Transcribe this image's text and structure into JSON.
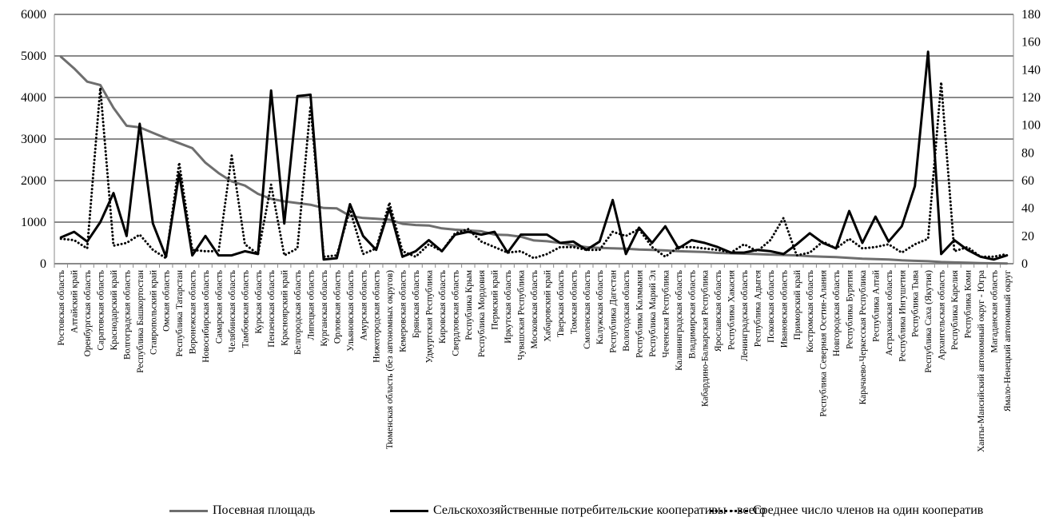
{
  "chart_data": {
    "type": "line",
    "grid": true,
    "legend_position": "bottom",
    "y_left": {
      "min": 0,
      "max": 6000,
      "ticks": [
        "0",
        "1000",
        "2000",
        "3000",
        "4000",
        "5000",
        "6000"
      ]
    },
    "y_right": {
      "min": 0,
      "max": 180,
      "ticks": [
        "0",
        "20",
        "40",
        "60",
        "80",
        "100",
        "120",
        "140",
        "160",
        "180"
      ]
    },
    "categories": [
      "Ростовская область",
      "Алтайский край",
      "Оренбургская область",
      "Саратовская область",
      "Краснодарский край",
      "Волгоградская область",
      "Республика Башкортостан",
      "Ставропольский край",
      "Омская область",
      "Республика Татарстан",
      "Воронежская область",
      "Новосибирская область",
      "Самарская область",
      "Челябинская область",
      "Тамбовская область",
      "Курская область",
      "Пензенская область",
      "Красноярский край",
      "Белгородская область",
      "Липецкая область",
      "Курганская область",
      "Орловская область",
      "Ульяновская область",
      "Амурская область",
      "Нижегородская область",
      "Тюменская область (без автономных округов)",
      "Кемеровская область",
      "Брянская область",
      "Удмуртская Республика",
      "Кировская область",
      "Свердловская область",
      "Республика Крым",
      "Республика Мордовия",
      "Пермский край",
      "Иркутская область",
      "Чувашская Республика",
      "Московская область",
      "Хабаровский край",
      "Тверская область",
      "Томская область",
      "Смоленская область",
      "Калужская область",
      "Республика Дагестан",
      "Вологодская область",
      "Республика Калмыкия",
      "Республика Марий Эл",
      "Чеченская Республика",
      "Калининградская область",
      "Владимирская область",
      "Кабардино-Балкарская Республика",
      "Ярославская область",
      "Республика Хакасия",
      "Ленинградская область",
      "Республика Адыгея",
      "Псковская область",
      "Ивановская область",
      "Приморский край",
      "Костромская область",
      "Республика Северная Осетия-Алания",
      "Новгородская область",
      "Республика Бурятия",
      "Карачаево-Черкесская Республика",
      "Республика Алтай",
      "Астраханская область",
      "Республика Ингушетия",
      "Республика Тыва",
      "Республика Саха (Якутия)",
      "Архангельская область",
      "Республика Карелия",
      "Республика Коми",
      "Ханты-Мансийский автономный округ - Югра",
      "Магаданская область",
      "Ямало-Ненецкий автономный округ"
    ],
    "series": [
      {
        "name": "Посевная площадь",
        "axis": "left",
        "style": "solid",
        "color": "#6e6e6e",
        "values": [
          4980,
          4700,
          4380,
          4300,
          3750,
          3320,
          3280,
          3150,
          3020,
          2900,
          2780,
          2430,
          2180,
          1980,
          1880,
          1680,
          1560,
          1500,
          1460,
          1420,
          1340,
          1330,
          1150,
          1100,
          1080,
          1060,
          960,
          930,
          920,
          850,
          820,
          800,
          780,
          700,
          690,
          650,
          560,
          540,
          500,
          440,
          400,
          380,
          370,
          360,
          340,
          330,
          320,
          300,
          290,
          280,
          260,
          250,
          240,
          230,
          220,
          210,
          200,
          180,
          170,
          160,
          140,
          120,
          110,
          100,
          80,
          70,
          60,
          40,
          30,
          25,
          15,
          10,
          5
        ]
      },
      {
        "name": "Сельскохозяйственные потребительские кооперативы - всего",
        "axis": "right",
        "style": "solid",
        "color": "#000000",
        "values": [
          19,
          23,
          16,
          30,
          51,
          20,
          101,
          29,
          5,
          65,
          6,
          20,
          6,
          6,
          9,
          7,
          125,
          29,
          121,
          122,
          3,
          4,
          43,
          20,
          10,
          40,
          5,
          9,
          17,
          9,
          21,
          23,
          21,
          23,
          8,
          21,
          21,
          21,
          15,
          16,
          10,
          16,
          46,
          7,
          26,
          15,
          27,
          11,
          17,
          15,
          12,
          8,
          8,
          10,
          9,
          7,
          14,
          22,
          15,
          11,
          38,
          15,
          34,
          16,
          27,
          56,
          153,
          7,
          17,
          10,
          5,
          3,
          6
        ]
      },
      {
        "name": "Среднее число членов на один кооператив",
        "axis": "right",
        "style": "dotted",
        "color": "#000000",
        "values": [
          18,
          17,
          11,
          127,
          13,
          15,
          21,
          10,
          4,
          73,
          10,
          9,
          9,
          78,
          14,
          7,
          57,
          6,
          11,
          114,
          5,
          6,
          39,
          7,
          11,
          44,
          9,
          5,
          14,
          9,
          22,
          25,
          16,
          12,
          8,
          9,
          4,
          7,
          12,
          12,
          10,
          10,
          23,
          20,
          25,
          12,
          5,
          12,
          12,
          11,
          10,
          8,
          14,
          9,
          17,
          33,
          6,
          8,
          16,
          11,
          18,
          11,
          12,
          14,
          8,
          14,
          18,
          131,
          9,
          12,
          5,
          5,
          7
        ]
      }
    ]
  }
}
